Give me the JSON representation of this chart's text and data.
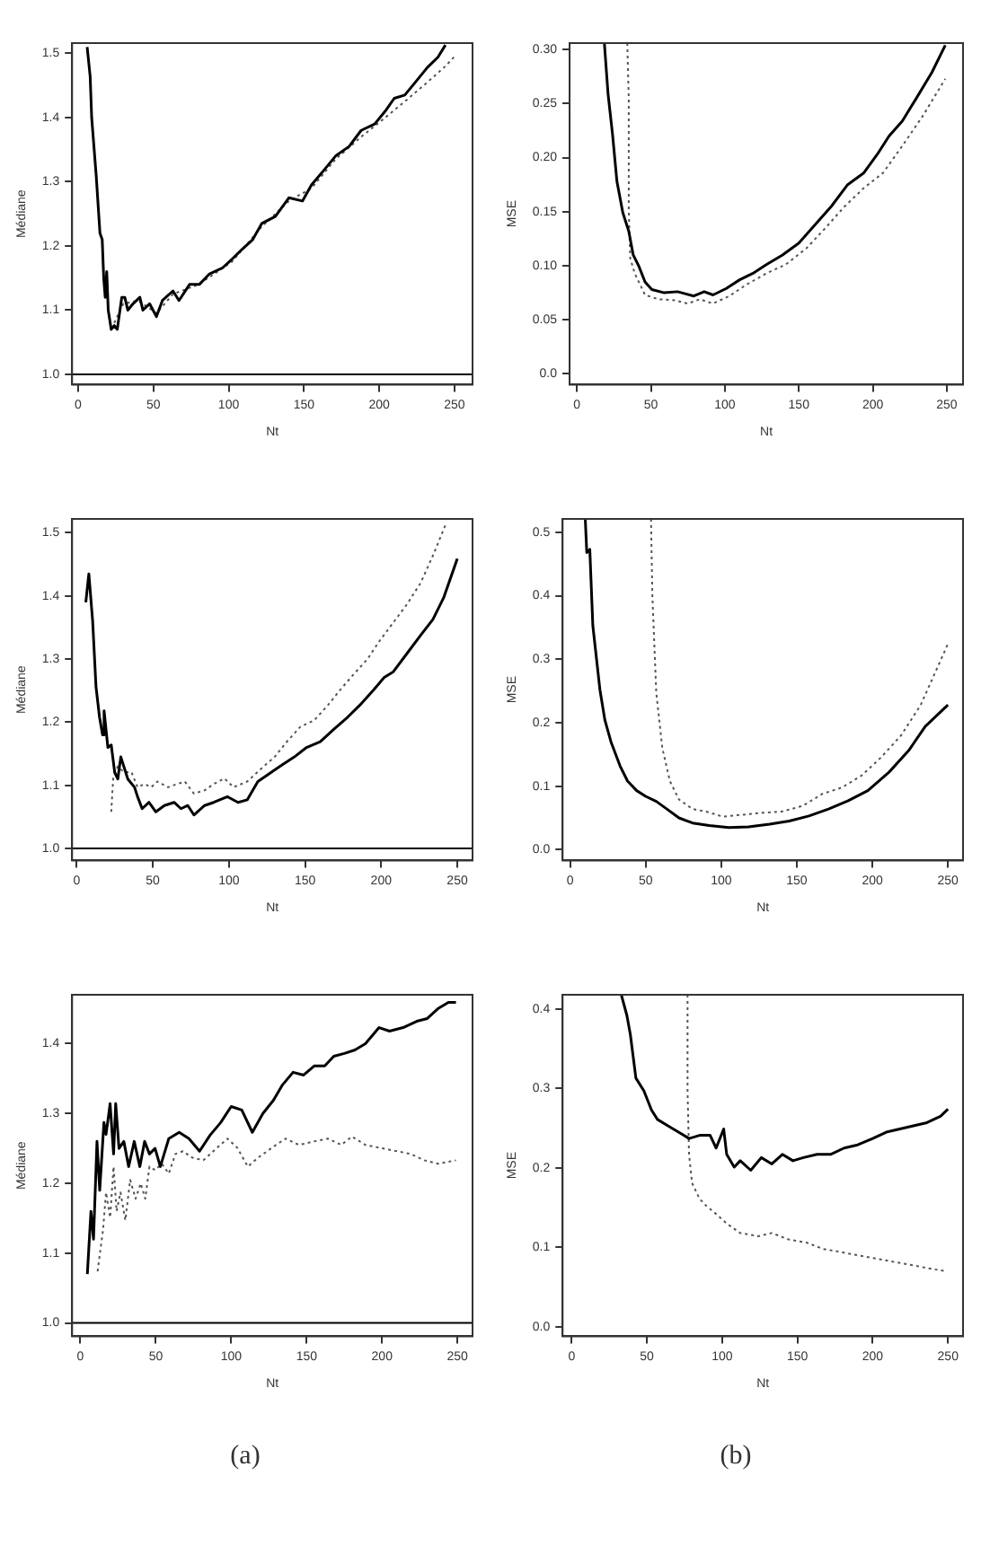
{
  "chart_data": [
    {
      "type": "line",
      "xlabel": "Nt",
      "ylabel": "Médiane",
      "xlim": [
        -4,
        262
      ],
      "ylim": [
        0.984,
        1.516
      ],
      "xticks": [
        0,
        50,
        100,
        150,
        200,
        250
      ],
      "yticks": [
        {
          "value": 1,
          "label": "1.0"
        },
        1.1,
        1.2,
        1.3,
        1.4,
        1.5
      ],
      "ref_lines": [
        {
          "axis": "y",
          "value": 1,
          "color": "#000000"
        }
      ],
      "series": [
        {
          "color": "#000000",
          "line_style": "solid",
          "x": [
            6,
            8,
            9,
            12,
            14.5,
            16,
            17,
            18,
            19,
            20,
            22,
            24,
            26,
            29,
            31,
            33,
            36.5,
            41,
            43,
            47.5,
            52,
            56,
            63,
            67,
            74,
            80.5,
            87,
            96,
            102.5,
            109,
            116,
            122,
            131,
            140,
            149,
            155,
            164,
            171,
            180,
            188,
            197,
            204,
            210,
            217,
            224,
            232,
            239,
            244
          ],
          "values": [
            1.51,
            1.464,
            1.4,
            1.31,
            1.22,
            1.21,
            1.15,
            1.12,
            1.16,
            1.1,
            1.07,
            1.076,
            1.07,
            1.12,
            1.12,
            1.1,
            1.11,
            1.12,
            1.1,
            1.11,
            1.09,
            1.115,
            1.13,
            1.115,
            1.14,
            1.14,
            1.156,
            1.166,
            1.18,
            1.195,
            1.21,
            1.235,
            1.246,
            1.275,
            1.27,
            1.295,
            1.32,
            1.34,
            1.355,
            1.38,
            1.39,
            1.41,
            1.43,
            1.435,
            1.455,
            1.478,
            1.494,
            1.513
          ]
        },
        {
          "color": "#555555",
          "line_style": "dotted",
          "x": [
            24,
            30,
            40,
            52,
            63,
            80,
            102,
            122,
            140,
            155,
            171,
            188,
            204,
            217,
            232,
            244,
            250
          ],
          "values": [
            1.08,
            1.11,
            1.115,
            1.095,
            1.125,
            1.14,
            1.175,
            1.23,
            1.27,
            1.29,
            1.335,
            1.37,
            1.4,
            1.425,
            1.455,
            1.48,
            1.495
          ]
        }
      ]
    },
    {
      "type": "line",
      "xlabel": "Nt",
      "ylabel": "MSE",
      "xlim": [
        -5,
        261
      ],
      "ylim": [
        -0.01,
        0.306
      ],
      "xticks": [
        0,
        50,
        100,
        150,
        200,
        250
      ],
      "yticks": [
        {
          "value": 0,
          "label": "0.0"
        },
        0.05,
        {
          "value": 0.1,
          "label": "0.10"
        },
        0.15,
        {
          "value": 0.2,
          "label": "0.20"
        },
        0.25,
        {
          "value": 0.3,
          "label": "0.30"
        }
      ],
      "series": [
        {
          "color": "#000000",
          "line_style": "solid",
          "x": [
            18.5,
            21,
            24,
            27,
            31,
            35,
            38,
            42,
            46,
            50.6,
            59,
            68,
            79,
            86,
            92,
            101,
            110,
            119,
            128,
            139,
            150,
            161,
            172,
            183,
            194,
            203,
            211,
            220,
            229,
            240,
            249
          ],
          "values": [
            0.306,
            0.259,
            0.222,
            0.178,
            0.149,
            0.132,
            0.11,
            0.099,
            0.085,
            0.078,
            0.075,
            0.076,
            0.072,
            0.076,
            0.073,
            0.079,
            0.087,
            0.093,
            0.101,
            0.11,
            0.121,
            0.138,
            0.155,
            0.175,
            0.186,
            0.203,
            0.22,
            0.234,
            0.254,
            0.279,
            0.304
          ]
        },
        {
          "color": "#555555",
          "line_style": "dotted",
          "x": [
            34,
            35,
            35,
            36,
            39,
            46,
            55,
            66,
            75,
            83,
            92,
            103,
            114,
            128,
            141,
            155,
            168,
            181,
            194,
            207,
            220,
            234,
            249
          ],
          "values": [
            0.306,
            0.254,
            0.152,
            0.107,
            0.093,
            0.073,
            0.069,
            0.068,
            0.065,
            0.069,
            0.065,
            0.072,
            0.082,
            0.093,
            0.101,
            0.116,
            0.135,
            0.155,
            0.172,
            0.186,
            0.211,
            0.239,
            0.273
          ]
        }
      ]
    },
    {
      "type": "line",
      "xlabel": "Nt",
      "ylabel": "Médiane",
      "xlim": [
        -3,
        260
      ],
      "ylim": [
        0.981,
        1.522
      ],
      "xticks": [
        0,
        50,
        100,
        150,
        200,
        250
      ],
      "yticks": [
        {
          "value": 1,
          "label": "1.0"
        },
        1.1,
        1.2,
        1.3,
        1.4,
        1.5
      ],
      "ref_lines": [
        {
          "axis": "y",
          "value": 1,
          "color": "#000000"
        }
      ],
      "series": [
        {
          "color": "#000000",
          "line_style": "solid",
          "x": [
            6,
            8,
            10.5,
            12.7,
            15,
            17,
            18,
            20.5,
            22.7,
            25,
            27,
            29,
            33.6,
            38,
            40,
            43,
            47.5,
            52,
            57.6,
            64,
            68.5,
            73,
            77,
            84,
            90,
            99,
            106,
            112,
            119,
            125,
            134,
            143,
            151,
            160,
            169,
            178,
            186,
            195,
            202,
            208,
            217,
            226,
            234,
            241,
            250
          ],
          "values": [
            1.39,
            1.435,
            1.36,
            1.256,
            1.208,
            1.18,
            1.218,
            1.16,
            1.164,
            1.12,
            1.11,
            1.145,
            1.11,
            1.097,
            1.082,
            1.063,
            1.073,
            1.058,
            1.068,
            1.073,
            1.063,
            1.068,
            1.053,
            1.068,
            1.073,
            1.082,
            1.073,
            1.077,
            1.106,
            1.116,
            1.131,
            1.145,
            1.16,
            1.169,
            1.189,
            1.208,
            1.227,
            1.251,
            1.271,
            1.28,
            1.309,
            1.338,
            1.363,
            1.397,
            1.459
          ]
        },
        {
          "color": "#555555",
          "line_style": "dotted",
          "x": [
            22.7,
            24,
            27,
            31,
            36,
            40,
            44.5,
            49,
            53,
            60,
            66,
            71,
            77,
            84,
            90,
            97,
            103,
            112,
            121,
            130,
            138,
            147,
            156,
            165,
            173,
            182,
            191,
            199,
            208,
            217,
            226,
            234,
            243
          ],
          "values": [
            1.058,
            1.111,
            1.13,
            1.121,
            1.121,
            1.097,
            1.102,
            1.097,
            1.106,
            1.097,
            1.102,
            1.106,
            1.087,
            1.092,
            1.102,
            1.111,
            1.097,
            1.106,
            1.126,
            1.145,
            1.169,
            1.193,
            1.203,
            1.227,
            1.251,
            1.276,
            1.3,
            1.329,
            1.358,
            1.387,
            1.421,
            1.464,
            1.517
          ]
        }
      ]
    },
    {
      "type": "line",
      "xlabel": "Nt",
      "ylabel": "MSE",
      "xlim": [
        -5,
        260
      ],
      "ylim": [
        -0.017,
        0.521
      ],
      "xticks": [
        0,
        50,
        100,
        150,
        200,
        250
      ],
      "yticks": [
        {
          "value": 0,
          "label": "0.0"
        },
        0.1,
        0.2,
        0.3,
        0.4,
        0.5
      ],
      "series": [
        {
          "color": "#000000",
          "line_style": "solid",
          "x": [
            10,
            11,
            13,
            15,
            19.7,
            23,
            27,
            33,
            38,
            44,
            50,
            57,
            64,
            72,
            81,
            92,
            105,
            118,
            132,
            145,
            158,
            171,
            184,
            197,
            211,
            224,
            235,
            250
          ],
          "values": [
            0.521,
            0.468,
            0.473,
            0.353,
            0.252,
            0.204,
            0.17,
            0.132,
            0.108,
            0.093,
            0.084,
            0.076,
            0.064,
            0.05,
            0.042,
            0.038,
            0.035,
            0.036,
            0.04,
            0.045,
            0.053,
            0.064,
            0.077,
            0.093,
            0.122,
            0.156,
            0.194,
            0.228
          ]
        },
        {
          "color": "#555555",
          "line_style": "dotted",
          "x": [
            53.5,
            54.4,
            57,
            61,
            66,
            72,
            81,
            90,
            101,
            114,
            127,
            140,
            154,
            167,
            180,
            193,
            206,
            219,
            232,
            250
          ],
          "values": [
            0.521,
            0.401,
            0.247,
            0.16,
            0.108,
            0.079,
            0.064,
            0.06,
            0.052,
            0.055,
            0.058,
            0.06,
            0.069,
            0.088,
            0.098,
            0.117,
            0.146,
            0.18,
            0.228,
            0.324
          ]
        }
      ]
    },
    {
      "type": "line",
      "xlabel": "Nt",
      "ylabel": "Médiane",
      "xlim": [
        -5.5,
        260
      ],
      "ylim": [
        0.981,
        1.47
      ],
      "xticks": [
        0,
        50,
        100,
        150,
        200,
        250
      ],
      "yticks": [
        {
          "value": 1,
          "label": "1.0"
        },
        1.1,
        1.2,
        1.3,
        1.4
      ],
      "ref_lines": [
        {
          "axis": "y",
          "value": 1,
          "color": "#000000"
        }
      ],
      "annotations": [
        "(a)"
      ],
      "series": [
        {
          "color": "#000000",
          "line_style": "solid",
          "x": [
            4.6,
            7,
            8.7,
            11,
            12.8,
            15.6,
            17,
            19.7,
            22,
            23.4,
            25.6,
            28.8,
            32,
            35.7,
            39.4,
            42.6,
            45.8,
            49.5,
            53,
            58.6,
            65.5,
            72,
            79,
            86,
            93,
            100,
            107,
            114,
            121,
            128,
            134,
            141,
            148,
            155,
            162,
            168,
            175,
            182,
            189,
            198,
            205,
            214,
            223,
            230,
            237,
            244,
            249
          ],
          "values": [
            1.07,
            1.16,
            1.12,
            1.26,
            1.19,
            1.287,
            1.27,
            1.314,
            1.242,
            1.314,
            1.25,
            1.26,
            1.224,
            1.26,
            1.224,
            1.26,
            1.242,
            1.25,
            1.224,
            1.264,
            1.273,
            1.264,
            1.246,
            1.269,
            1.287,
            1.31,
            1.305,
            1.273,
            1.3,
            1.319,
            1.341,
            1.359,
            1.355,
            1.368,
            1.368,
            1.382,
            1.386,
            1.391,
            1.4,
            1.423,
            1.418,
            1.423,
            1.432,
            1.436,
            1.45,
            1.459,
            1.459
          ]
        },
        {
          "color": "#555555",
          "line_style": "dotted",
          "x": [
            11.4,
            15,
            17,
            19.7,
            22,
            24,
            26.6,
            29.8,
            33,
            36.6,
            40,
            43,
            45.8,
            49.5,
            54,
            58.6,
            63,
            68,
            74,
            81.5,
            90.7,
            97.5,
            104,
            111,
            118,
            127,
            136,
            145,
            155,
            164,
            173,
            180,
            189,
            198,
            210,
            219,
            228,
            237,
            249
          ],
          "values": [
            1.074,
            1.133,
            1.187,
            1.151,
            1.224,
            1.16,
            1.187,
            1.147,
            1.205,
            1.178,
            1.2,
            1.178,
            1.224,
            1.219,
            1.228,
            1.214,
            1.242,
            1.246,
            1.237,
            1.233,
            1.251,
            1.264,
            1.251,
            1.224,
            1.237,
            1.251,
            1.264,
            1.255,
            1.26,
            1.264,
            1.255,
            1.267,
            1.255,
            1.251,
            1.246,
            1.242,
            1.233,
            1.228,
            1.233
          ]
        }
      ]
    },
    {
      "type": "line",
      "xlabel": "Nt",
      "ylabel": "MSE",
      "xlim": [
        -6,
        260
      ],
      "ylim": [
        -0.012,
        0.418
      ],
      "xticks": [
        0,
        50,
        100,
        150,
        200,
        250
      ],
      "yticks": [
        {
          "value": 0,
          "label": "0.0"
        },
        0.1,
        0.2,
        0.3,
        0.4
      ],
      "annotations": [
        "(b)"
      ],
      "series": [
        {
          "color": "#000000",
          "line_style": "solid",
          "x": [
            33,
            36.7,
            39,
            42.7,
            48,
            53,
            57,
            64,
            71,
            78,
            85,
            92,
            96,
            101,
            103,
            108,
            112,
            119,
            126,
            133,
            140,
            147,
            154,
            163,
            172,
            181,
            190,
            200,
            209,
            218,
            227,
            236,
            245,
            250
          ],
          "values": [
            0.418,
            0.392,
            0.368,
            0.313,
            0.297,
            0.273,
            0.261,
            0.253,
            0.245,
            0.237,
            0.241,
            0.241,
            0.225,
            0.249,
            0.217,
            0.201,
            0.209,
            0.197,
            0.213,
            0.205,
            0.217,
            0.209,
            0.213,
            0.217,
            0.217,
            0.225,
            0.229,
            0.237,
            0.245,
            0.249,
            0.253,
            0.257,
            0.265,
            0.274
          ]
        },
        {
          "color": "#555555",
          "line_style": "dotted",
          "x": [
            77,
            77,
            78,
            80,
            85,
            89,
            96,
            103,
            112,
            124,
            133,
            144,
            156,
            167,
            179,
            190,
            202,
            213,
            225,
            236,
            248
          ],
          "values": [
            0.418,
            0.297,
            0.217,
            0.181,
            0.161,
            0.153,
            0.142,
            0.13,
            0.118,
            0.114,
            0.118,
            0.11,
            0.106,
            0.098,
            0.094,
            0.09,
            0.086,
            0.082,
            0.078,
            0.074,
            0.07
          ]
        }
      ]
    }
  ]
}
